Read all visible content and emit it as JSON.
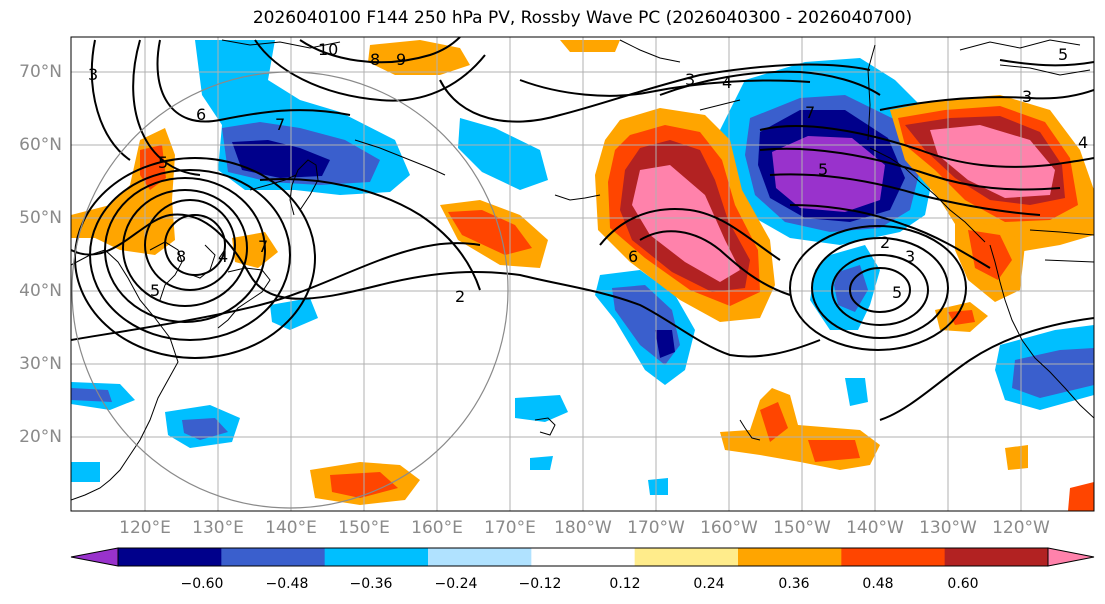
{
  "title": "2026040100 F144 250 hPa PV, Rossby Wave PC (2026040300 - 2026040700)",
  "lat_labels": [
    "70°N",
    "60°N",
    "50°N",
    "40°N",
    "30°N",
    "20°N"
  ],
  "lon_labels": [
    "120°E",
    "130°E",
    "140°E",
    "150°E",
    "160°E",
    "170°E",
    "180°W",
    "170°W",
    "160°W",
    "150°W",
    "140°W",
    "130°W",
    "120°W"
  ],
  "colorbar": {
    "colors": [
      "#9932CC",
      "#00008B",
      "#3A5FCD",
      "#00BFFF",
      "#B0E2FF",
      "#FFFFFF",
      "#FFEC8B",
      "#FFA500",
      "#FF4500",
      "#B22222",
      "#FF82AB"
    ],
    "ticks": [
      "−0.60",
      "−0.48",
      "−0.36",
      "−0.24",
      "−0.12",
      "0.12",
      "0.24",
      "0.36",
      "0.48",
      "0.60"
    ]
  },
  "contour_labels": [
    "10",
    "9",
    "8",
    "7",
    "6",
    "5",
    "4",
    "3",
    "2",
    "3",
    "7",
    "5",
    "2",
    "3",
    "5",
    "6",
    "7",
    "8",
    "5",
    "4",
    "3",
    "4",
    "5"
  ]
}
